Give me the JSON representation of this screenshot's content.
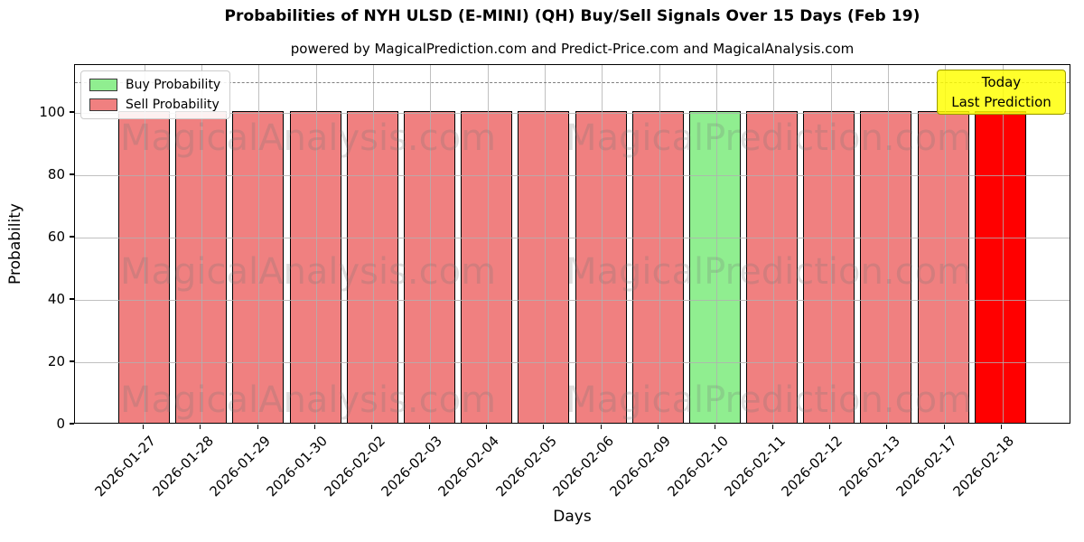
{
  "title": "Probabilities of NYH ULSD (E-MINI) (QH) Buy/Sell Signals Over 15 Days (Feb 19)",
  "subtitle": "powered by MagicalPrediction.com and Predict-Price.com and MagicalAnalysis.com",
  "annotation": {
    "line1": "Today",
    "line2": "Last Prediction",
    "bg_color": "#ffff00",
    "border_color": "#9c9c00"
  },
  "watermarks": {
    "left": "MagicalAnalysis.com",
    "right": "MagicalPrediction.com"
  },
  "colors": {
    "buy": "#90ee90",
    "sell": "#f08080",
    "sell_today": "#ff0000",
    "bar_edge": "#000000",
    "grid": "#b0b0b0",
    "dashed_line": "#7f7f7f"
  },
  "chart_data": {
    "type": "bar",
    "title": "Probabilities of NYH ULSD (E-MINI) (QH) Buy/Sell Signals Over 15 Days (Feb 19)",
    "xlabel": "Days",
    "ylabel": "Probability",
    "ylim": [
      0,
      115.4
    ],
    "yticks": [
      0,
      20,
      40,
      60,
      80,
      100
    ],
    "dashed_line_y": 110,
    "grid": true,
    "legend_position": "upper-left",
    "legend": [
      {
        "label": "Buy Probability",
        "color": "#90ee90"
      },
      {
        "label": "Sell Probability",
        "color": "#f08080"
      }
    ],
    "categories": [
      "2026-01-27",
      "2026-01-28",
      "2026-01-29",
      "2026-01-30",
      "2026-02-02",
      "2026-02-03",
      "2026-02-04",
      "2026-02-05",
      "2026-02-06",
      "2026-02-09",
      "2026-02-10",
      "2026-02-11",
      "2026-02-12",
      "2026-02-13",
      "2026-02-17",
      "2026-02-18"
    ],
    "bars": [
      {
        "date": "2026-01-27",
        "value": 100,
        "signal": "sell"
      },
      {
        "date": "2026-01-28",
        "value": 100,
        "signal": "sell"
      },
      {
        "date": "2026-01-29",
        "value": 100,
        "signal": "sell"
      },
      {
        "date": "2026-01-30",
        "value": 100,
        "signal": "sell"
      },
      {
        "date": "2026-02-02",
        "value": 100,
        "signal": "sell"
      },
      {
        "date": "2026-02-03",
        "value": 100,
        "signal": "sell"
      },
      {
        "date": "2026-02-04",
        "value": 100,
        "signal": "sell"
      },
      {
        "date": "2026-02-05",
        "value": 100,
        "signal": "sell"
      },
      {
        "date": "2026-02-06",
        "value": 100,
        "signal": "sell"
      },
      {
        "date": "2026-02-09",
        "value": 100,
        "signal": "sell"
      },
      {
        "date": "2026-02-10",
        "value": 100,
        "signal": "buy"
      },
      {
        "date": "2026-02-11",
        "value": 100,
        "signal": "sell"
      },
      {
        "date": "2026-02-12",
        "value": 100,
        "signal": "sell"
      },
      {
        "date": "2026-02-13",
        "value": 100,
        "signal": "sell"
      },
      {
        "date": "2026-02-17",
        "value": 100,
        "signal": "sell"
      },
      {
        "date": "2026-02-18",
        "value": 100,
        "signal": "sell_today"
      }
    ]
  }
}
